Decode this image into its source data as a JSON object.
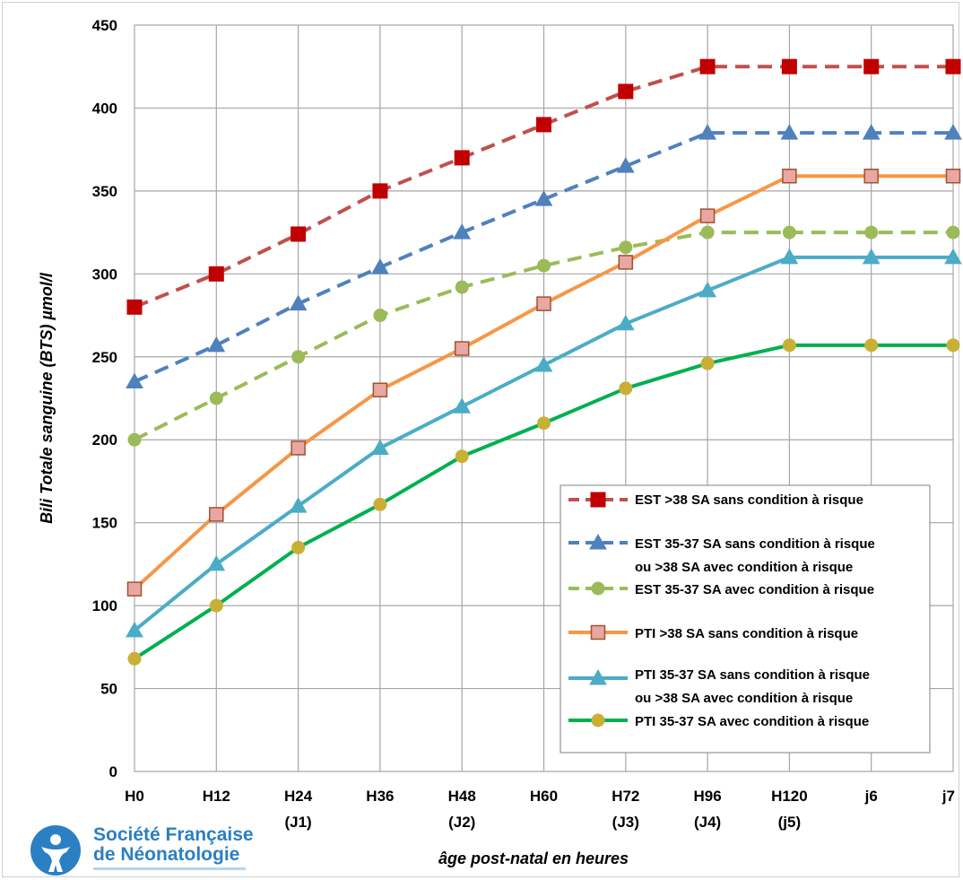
{
  "chart_data": {
    "type": "line",
    "title": "",
    "ylabel": "Bili Totale sanguine (BTS) µmol/l",
    "xlabel": "âge post-natal en heures",
    "ylim": [
      0,
      450
    ],
    "yticks": [
      0,
      50,
      100,
      150,
      200,
      250,
      300,
      350,
      400,
      450
    ],
    "grid": true,
    "legend_position": "bottom-right",
    "categories": [
      {
        "label": "H0",
        "sub": ""
      },
      {
        "label": "H12",
        "sub": ""
      },
      {
        "label": "H24",
        "sub": "(J1)"
      },
      {
        "label": "H36",
        "sub": ""
      },
      {
        "label": "H48",
        "sub": "(J2)"
      },
      {
        "label": "H60",
        "sub": ""
      },
      {
        "label": "H72",
        "sub": "(J3)"
      },
      {
        "label": "H96",
        "sub": "(J4)"
      },
      {
        "label": "H120",
        "sub": "(j5)"
      },
      {
        "label": "j6",
        "sub": ""
      },
      {
        "label": "j7",
        "sub": ""
      }
    ],
    "series": [
      {
        "name": "EST >38 SA sans condition à risque",
        "name_line2": "",
        "color": "#c0504d",
        "marker": "square-filled",
        "dashed": true,
        "values": [
          280,
          300,
          324,
          350,
          370,
          390,
          410,
          425,
          425,
          425,
          425
        ]
      },
      {
        "name": "EST  35-37 SA sans condition à risque",
        "name_line2": "ou >38 SA avec condition à risque",
        "color": "#4f81bd",
        "marker": "triangle",
        "dashed": true,
        "values": [
          235,
          257,
          282,
          304,
          325,
          345,
          365,
          385,
          385,
          385,
          385
        ]
      },
      {
        "name": "EST 35-37 SA avec condition à risque",
        "name_line2": "",
        "color": "#9bbb59",
        "marker": "circle",
        "dashed": true,
        "values": [
          200,
          225,
          250,
          275,
          292,
          305,
          316,
          325,
          325,
          325,
          325
        ]
      },
      {
        "name": "PTI >38 SA sans condition à risque",
        "name_line2": "",
        "color": "#f79646",
        "marker": "square-open",
        "dashed": false,
        "values": [
          110,
          155,
          195,
          230,
          255,
          282,
          307,
          335,
          359,
          359,
          359
        ]
      },
      {
        "name": "PTI 35-37 SA sans condition à risque",
        "name_line2": "ou >38 SA avec condition à risque",
        "color": "#4bacc6",
        "marker": "triangle",
        "dashed": false,
        "values": [
          85,
          125,
          160,
          195,
          220,
          245,
          270,
          290,
          310,
          310,
          310
        ]
      },
      {
        "name": "PTI 35-37 SA avec condition à risque",
        "name_line2": "",
        "color": "#00b050",
        "marker": "circle",
        "dashed": false,
        "values": [
          68,
          100,
          135,
          161,
          190,
          210,
          231,
          246,
          257,
          257,
          257
        ]
      }
    ]
  },
  "logo": {
    "line1": "Société Française",
    "line2": "de Néonatologie"
  }
}
